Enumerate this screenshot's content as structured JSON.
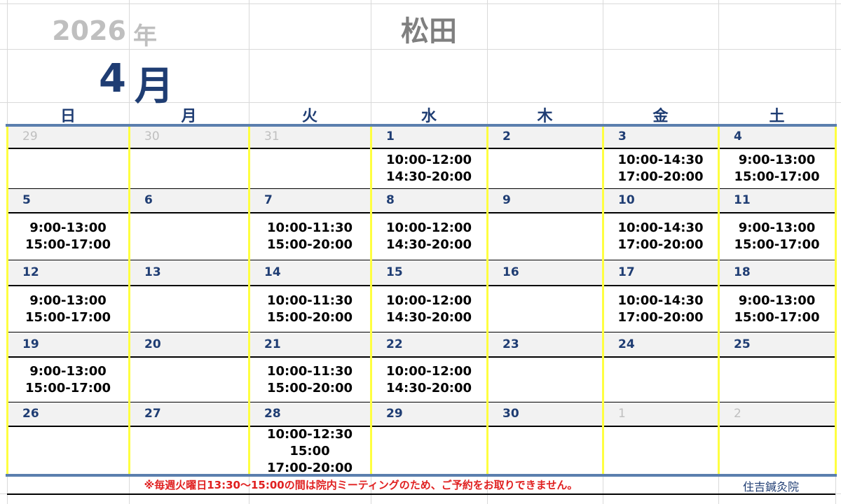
{
  "header": {
    "year": "2026",
    "year_suffix": "年",
    "month": "4",
    "month_suffix": "月",
    "name": "松田"
  },
  "weekdays": [
    "日",
    "月",
    "火",
    "水",
    "木",
    "金",
    "土"
  ],
  "weeks": [
    [
      {
        "d": "29",
        "m": true,
        "t": []
      },
      {
        "d": "30",
        "m": true,
        "t": []
      },
      {
        "d": "31",
        "m": true,
        "t": []
      },
      {
        "d": "1",
        "t": [
          "10:00-12:00",
          "14:30-20:00"
        ]
      },
      {
        "d": "2",
        "t": []
      },
      {
        "d": "3",
        "t": [
          "10:00-14:30",
          "17:00-20:00"
        ]
      },
      {
        "d": "4",
        "t": [
          "9:00-13:00",
          "15:00-17:00"
        ]
      }
    ],
    [
      {
        "d": "5",
        "t": [
          "9:00-13:00",
          "15:00-17:00"
        ]
      },
      {
        "d": "6",
        "t": []
      },
      {
        "d": "7",
        "t": [
          "10:00-11:30",
          "15:00-20:00"
        ]
      },
      {
        "d": "8",
        "t": [
          "10:00-12:00",
          "14:30-20:00"
        ]
      },
      {
        "d": "9",
        "t": []
      },
      {
        "d": "10",
        "t": [
          "10:00-14:30",
          "17:00-20:00"
        ]
      },
      {
        "d": "11",
        "t": [
          "9:00-13:00",
          "15:00-17:00"
        ]
      }
    ],
    [
      {
        "d": "12",
        "t": [
          "9:00-13:00",
          "15:00-17:00"
        ]
      },
      {
        "d": "13",
        "t": []
      },
      {
        "d": "14",
        "t": [
          "10:00-11:30",
          "15:00-20:00"
        ]
      },
      {
        "d": "15",
        "t": [
          "10:00-12:00",
          "14:30-20:00"
        ]
      },
      {
        "d": "16",
        "t": []
      },
      {
        "d": "17",
        "t": [
          "10:00-14:30",
          "17:00-20:00"
        ]
      },
      {
        "d": "18",
        "t": [
          "9:00-13:00",
          "15:00-17:00"
        ]
      }
    ],
    [
      {
        "d": "19",
        "t": [
          "9:00-13:00",
          "15:00-17:00"
        ]
      },
      {
        "d": "20",
        "t": []
      },
      {
        "d": "21",
        "t": [
          "10:00-11:30",
          "15:00-20:00"
        ]
      },
      {
        "d": "22",
        "t": [
          "10:00-12:00",
          "14:30-20:00"
        ]
      },
      {
        "d": "23",
        "t": []
      },
      {
        "d": "24",
        "t": []
      },
      {
        "d": "25",
        "t": []
      }
    ],
    [
      {
        "d": "26",
        "t": []
      },
      {
        "d": "27",
        "t": []
      },
      {
        "d": "28",
        "t": [
          "10:00-12:30",
          "15:00",
          "17:00-20:00"
        ]
      },
      {
        "d": "29",
        "t": []
      },
      {
        "d": "30",
        "t": []
      },
      {
        "d": "1",
        "m": true,
        "t": []
      },
      {
        "d": "2",
        "m": true,
        "t": []
      }
    ]
  ],
  "footer": {
    "note": "※毎週火曜日13:30〜15:00の間は院内ミーティングのため、ご予約をお取りできません。",
    "clinic": "住吉鍼灸院"
  },
  "colors": {
    "accent": "#1f3d73",
    "highlight": "#ffff40",
    "note": "#e02020",
    "rule": "#5b7fae"
  }
}
